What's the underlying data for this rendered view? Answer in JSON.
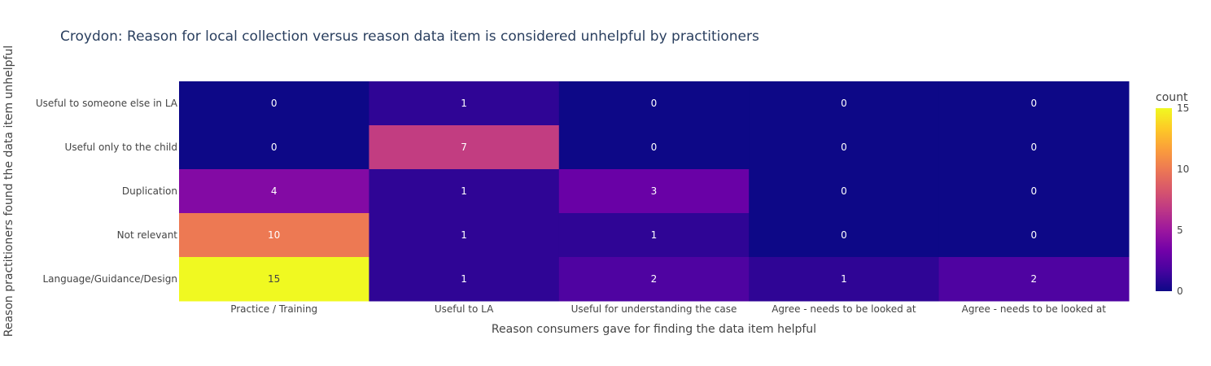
{
  "chart_data": {
    "type": "heatmap",
    "title": "Croydon: Reason for local collection versus reason data item is considered unhelpful by practitioners",
    "xlabel": "Reason consumers gave for finding the data item helpful",
    "ylabel": "Reason practitioners found the data item unhelpful",
    "x_categories": [
      "Practice / Training",
      "Useful to LA",
      "Useful for understanding the case",
      "Agree - needs to be looked at",
      "Agree - needs to be looked at"
    ],
    "y_categories": [
      "Useful to someone else in LA",
      "Useful only to the child",
      "Duplication",
      "Not relevant",
      "Language/Guidance/Design"
    ],
    "z": [
      [
        0,
        1,
        0,
        0,
        0
      ],
      [
        0,
        7,
        0,
        0,
        0
      ],
      [
        4,
        1,
        3,
        0,
        0
      ],
      [
        10,
        1,
        1,
        0,
        0
      ],
      [
        15,
        1,
        2,
        1,
        2
      ]
    ],
    "colorbar": {
      "title": "count",
      "range": [
        0,
        15
      ],
      "ticks": [
        0,
        5,
        10,
        15
      ]
    },
    "colorscale": "plasma"
  }
}
